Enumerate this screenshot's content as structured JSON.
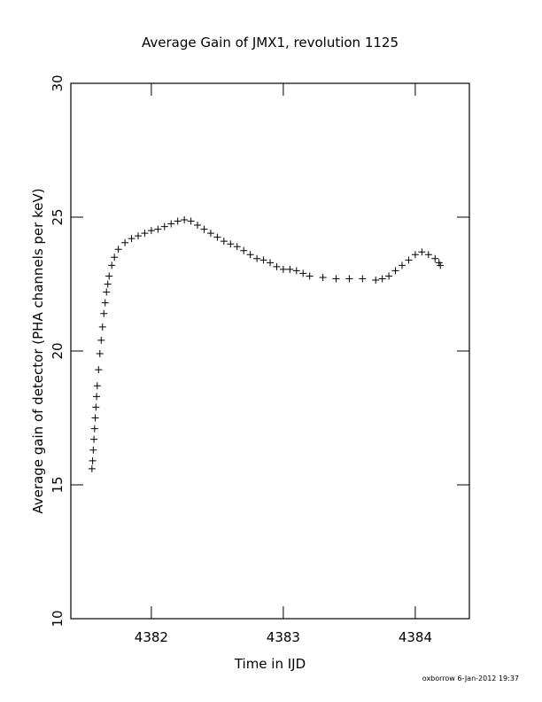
{
  "chart_data": {
    "type": "scatter",
    "title": "Average Gain of JMX1, revolution 1125",
    "x_label": "Time in IJD",
    "y_label": "Average gain of detector (PHA channels per keV)",
    "footer": "oxborrow  6-Jan-2012 19:37",
    "color": "#000000",
    "xlim": [
      4381.39,
      4384.41
    ],
    "xticks": [
      4382,
      4383,
      4384
    ],
    "ylim": [
      10,
      30
    ],
    "yticks": [
      10,
      15,
      20,
      25,
      30
    ],
    "x": [
      4381.55,
      4381.555,
      4381.56,
      4381.565,
      4381.57,
      4381.575,
      4381.58,
      4381.585,
      4381.59,
      4381.6,
      4381.61,
      4381.62,
      4381.63,
      4381.64,
      4381.65,
      4381.66,
      4381.67,
      4381.68,
      4381.7,
      4381.72,
      4381.75,
      4381.8,
      4381.85,
      4381.9,
      4381.95,
      4382.0,
      4382.05,
      4382.1,
      4382.15,
      4382.2,
      4382.25,
      4382.3,
      4382.35,
      4382.4,
      4382.45,
      4382.5,
      4382.55,
      4382.6,
      4382.65,
      4382.7,
      4382.75,
      4382.8,
      4382.85,
      4382.9,
      4382.95,
      4383.0,
      4383.05,
      4383.1,
      4383.15,
      4383.2,
      4383.3,
      4383.4,
      4383.5,
      4383.6,
      4383.7,
      4383.75,
      4383.8,
      4383.85,
      4383.9,
      4383.95,
      4384.0,
      4384.05,
      4384.1,
      4384.15,
      4384.18,
      4384.19
    ],
    "values": [
      15.6,
      15.9,
      16.3,
      16.7,
      17.1,
      17.5,
      17.9,
      18.3,
      18.7,
      19.3,
      19.9,
      20.4,
      20.9,
      21.4,
      21.8,
      22.2,
      22.5,
      22.8,
      23.2,
      23.5,
      23.8,
      24.05,
      24.2,
      24.3,
      24.4,
      24.5,
      24.55,
      24.65,
      24.75,
      24.85,
      24.9,
      24.85,
      24.7,
      24.55,
      24.4,
      24.25,
      24.1,
      24.0,
      23.9,
      23.75,
      23.6,
      23.45,
      23.4,
      23.3,
      23.15,
      23.05,
      23.05,
      23.0,
      22.9,
      22.8,
      22.75,
      22.7,
      22.7,
      22.7,
      22.65,
      22.7,
      22.8,
      23.0,
      23.2,
      23.4,
      23.6,
      23.7,
      23.6,
      23.45,
      23.3,
      23.2
    ]
  }
}
